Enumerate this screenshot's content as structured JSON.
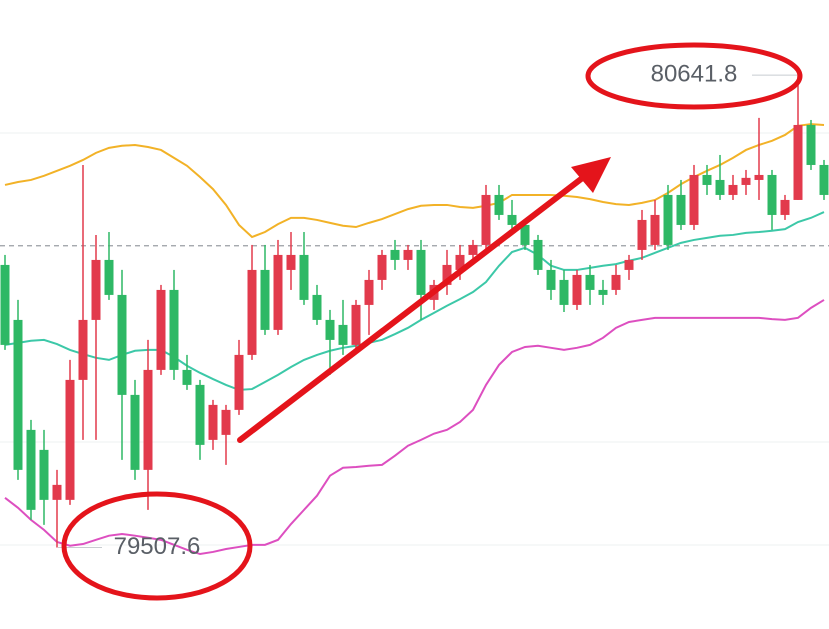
{
  "chart_data": {
    "type": "candlestick",
    "open": [
      80186,
      80054,
      79790,
      79742,
      79622,
      79622,
      79910,
      80054,
      80198,
      80114,
      79874,
      79694,
      79934,
      80126,
      79934,
      79898,
      79766,
      79778,
      79838,
      79970,
      80174,
      80030,
      80174,
      80210,
      80114,
      80054,
      80042,
      79994,
      80090,
      80150,
      80222,
      80198,
      80222,
      80102,
      80138,
      80174,
      80210,
      80234,
      80354,
      80306,
      80282,
      80246,
      80174,
      80150,
      80090,
      80162,
      80126,
      80126,
      80174,
      80222,
      80234,
      80354,
      80354,
      80282,
      80402,
      80390,
      80354,
      80378,
      80390,
      80402,
      80306,
      80342,
      80522,
      80426
    ],
    "high": [
      80210,
      80102,
      79814,
      79790,
      79694,
      79958,
      80426,
      80258,
      80265,
      80174,
      79910,
      80006,
      80138,
      80174,
      79970,
      79910,
      79862,
      79850,
      80006,
      80234,
      80234,
      80246,
      80265,
      80265,
      80138,
      80078,
      80102,
      80102,
      80174,
      80222,
      80246,
      80234,
      80246,
      80150,
      80222,
      80234,
      80246,
      80378,
      80378,
      80342,
      80294,
      80258,
      80198,
      80174,
      80174,
      80186,
      80150,
      80186,
      80210,
      80318,
      80342,
      80378,
      80390,
      80426,
      80426,
      80450,
      80402,
      80414,
      80539,
      80414,
      80354,
      80641.8,
      80534,
      80438
    ],
    "low": [
      79982,
      79670,
      79574,
      79562,
      79507.6,
      79610,
      79766,
      79766,
      80102,
      79718,
      79670,
      79598,
      79922,
      79910,
      79886,
      79718,
      79742,
      79706,
      79826,
      79958,
      80018,
      80018,
      80126,
      80090,
      80042,
      79922,
      79970,
      79982,
      80018,
      80126,
      80174,
      80174,
      80054,
      80078,
      80114,
      80150,
      80186,
      80222,
      80294,
      80270,
      80222,
      80162,
      80102,
      80073,
      80078,
      80090,
      80090,
      80114,
      80150,
      80198,
      80222,
      80222,
      80270,
      80270,
      80354,
      80342,
      80342,
      80354,
      80342,
      80270,
      80294,
      80342,
      80414,
      80342
    ],
    "close": [
      79994,
      79694,
      79598,
      79622,
      79658,
      79910,
      80054,
      80198,
      80114,
      79874,
      79694,
      79934,
      80126,
      79934,
      79898,
      79754,
      79850,
      79838,
      79970,
      80174,
      80030,
      80210,
      80210,
      80102,
      80054,
      80006,
      79994,
      80090,
      80150,
      80210,
      80198,
      80222,
      80114,
      80138,
      80186,
      80210,
      80234,
      80354,
      80306,
      80282,
      80234,
      80174,
      80126,
      80090,
      80162,
      80126,
      80114,
      80162,
      80198,
      80294,
      80306,
      80234,
      80282,
      80402,
      80378,
      80354,
      80378,
      80395,
      80402,
      80306,
      80342,
      80522,
      80426,
      80354
    ],
    "up_color": "#e23a4c",
    "down_color": "#2eb865",
    "bands": {
      "upper": {
        "color": "#f2b227",
        "values": [
          80378,
          80385,
          80390,
          80400,
          80412,
          80424,
          80438,
          80455,
          80467,
          80472,
          80474,
          80469,
          80462,
          80443,
          80424,
          80397,
          80368,
          80330,
          80282,
          80253,
          80265,
          80284,
          80299,
          80299,
          80294,
          80287,
          80280,
          80277,
          80287,
          80296,
          80308,
          80320,
          80328,
          80330,
          80330,
          80325,
          80323,
          80328,
          80335,
          80354,
          80354,
          80354,
          80354,
          80352,
          80349,
          80344,
          80337,
          80332,
          80330,
          80335,
          80342,
          80359,
          80380,
          80397,
          80412,
          80426,
          80443,
          80462,
          80474,
          80484,
          80498,
          80520,
          80524,
          80522
        ]
      },
      "middle": {
        "color": "#3cc8a8",
        "values": [
          79994,
          79999,
          80004,
          80006,
          79996,
          79982,
          79972,
          79963,
          79958,
          79970,
          79980,
          79982,
          79982,
          79965,
          79944,
          79927,
          79912,
          79898,
          79886,
          79888,
          79905,
          79922,
          79941,
          79958,
          79970,
          79980,
          79987,
          79992,
          79999,
          80006,
          80020,
          80035,
          80054,
          80071,
          80088,
          80104,
          80121,
          80145,
          80184,
          80217,
          80227,
          80210,
          80184,
          80174,
          80174,
          80179,
          80184,
          80188,
          80196,
          80203,
          80215,
          80227,
          80239,
          80246,
          80251,
          80256,
          80258,
          80263,
          80265,
          80268,
          80272,
          80289,
          80299,
          80313
        ]
      },
      "lower": {
        "color": "#dd4fc0",
        "values": [
          79627,
          79603,
          79574,
          79550,
          79521,
          79512,
          79516,
          79526,
          79536,
          79540,
          79536,
          79531,
          79526,
          79514,
          79502,
          79492,
          79497,
          79504,
          79509,
          79514,
          79514,
          79526,
          79564,
          79598,
          79632,
          79680,
          79699,
          79701,
          79704,
          79706,
          79728,
          79752,
          79766,
          79781,
          79790,
          79809,
          79838,
          79898,
          79946,
          79977,
          79989,
          79992,
          79987,
          79982,
          79987,
          79994,
          80011,
          80035,
          80049,
          80054,
          80059,
          80059,
          80059,
          80059,
          80059,
          80059,
          80059,
          80059,
          80059,
          80056,
          80054,
          80059,
          80083,
          80102
        ]
      }
    },
    "ylim": [
      79312,
      80822
    ],
    "reference_line": 80232,
    "max_label": 80641.8,
    "min_label": 79507.6
  }
}
